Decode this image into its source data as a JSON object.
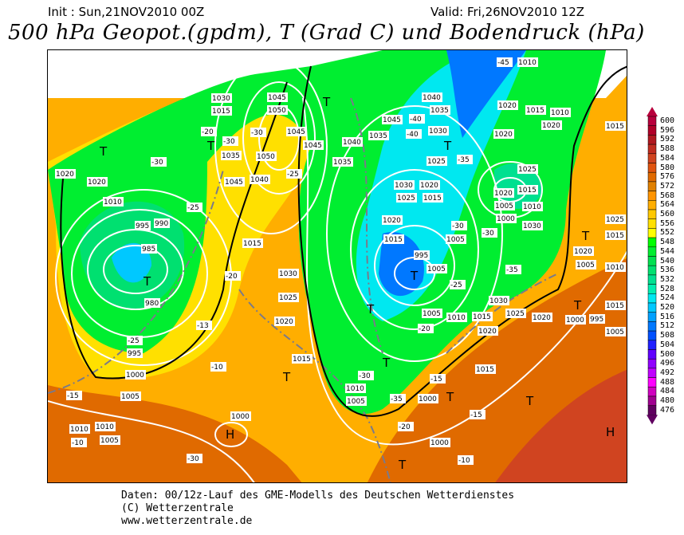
{
  "header": {
    "init": "Init : Sun,21NOV2010 00Z",
    "valid": "Valid: Fri,26NOV2010 12Z",
    "title": "500 hPa Geopot.(gpdm), T (Grad C) und Bodendruck (hPa)"
  },
  "colorbar": {
    "levels": [
      "600",
      "596",
      "592",
      "588",
      "584",
      "580",
      "576",
      "572",
      "568",
      "564",
      "560",
      "556",
      "552",
      "548",
      "544",
      "540",
      "536",
      "532",
      "528",
      "524",
      "520",
      "516",
      "512",
      "508",
      "504",
      "500",
      "496",
      "492",
      "488",
      "484",
      "480",
      "476"
    ],
    "colors": [
      "#b8003c",
      "#b00028",
      "#b01820",
      "#c02c20",
      "#d04420",
      "#e05410",
      "#e06a00",
      "#e08000",
      "#ff9400",
      "#ffae00",
      "#ffc800",
      "#ffe000",
      "#ffff00",
      "#00ff00",
      "#00ee30",
      "#00e050",
      "#00e070",
      "#00e090",
      "#00eeb0",
      "#00e8f0",
      "#00c8ff",
      "#00a0ff",
      "#0078ff",
      "#0050ff",
      "#2020ff",
      "#6000ff",
      "#9000ff",
      "#c000ff",
      "#ff00ff",
      "#d000c0",
      "#a00090",
      "#600060"
    ]
  },
  "map": {
    "pressure_labels": [
      "1030",
      "1050",
      "1045",
      "1045",
      "1040",
      "1035",
      "1050",
      "1035",
      "1045",
      "1040",
      "1035",
      "1030",
      "1025",
      "1020",
      "1015",
      "1045",
      "1040",
      "1035",
      "1030",
      "1025",
      "1020",
      "1015",
      "1010",
      "1005",
      "1000",
      "995",
      "990",
      "985",
      "980",
      "995",
      "1000",
      "1005",
      "1010",
      "1005",
      "1010",
      "1030",
      "1025",
      "1020",
      "1015",
      "1010",
      "1005",
      "1000",
      "1000",
      "995",
      "1005",
      "1005",
      "1010",
      "1015",
      "1020",
      "1025",
      "1030",
      "1030",
      "1025",
      "1020",
      "1015",
      "1010",
      "1005",
      "1000",
      "995",
      "1005",
      "1015",
      "1020",
      "1015",
      "1020",
      "1020",
      "1020",
      "1015",
      "1010",
      "1015",
      "1025",
      "1020",
      "1015",
      "1010",
      "1005",
      "1000",
      "1020",
      "1020",
      "1010",
      "1015",
      "1015",
      "1045"
    ],
    "temperature_labels": [
      "-30",
      "-25",
      "-30",
      "-20",
      "-30",
      "-25",
      "-20",
      "-13",
      "-10",
      "-15",
      "-10",
      "-25",
      "-30",
      "-35",
      "-40",
      "-45",
      "-40",
      "-35",
      "-30",
      "-35",
      "-30",
      "-25",
      "-20",
      "-15",
      "-15",
      "-10",
      "-20",
      "-30"
    ],
    "pressure_centers": [
      "T",
      "T",
      "T",
      "T",
      "T",
      "T",
      "T",
      "T",
      "T",
      "T",
      "T",
      "T",
      "T",
      "H",
      "H",
      "T"
    ]
  },
  "footer": {
    "line1": "Daten: 00/12z-Lauf des GME-Modells des Deutschen Wetterdienstes",
    "line2": "(C) Wetterzentrale",
    "line3": "www.wetterzentrale.de"
  }
}
